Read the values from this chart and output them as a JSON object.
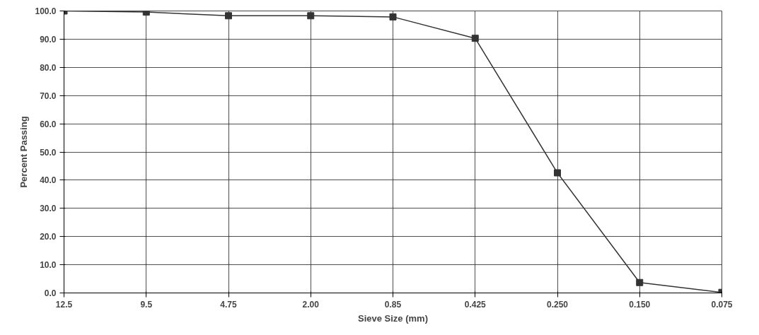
{
  "chart_data": {
    "type": "line",
    "xlabel": "Sieve Size (mm)",
    "ylabel": "Percent Passing",
    "categories": [
      "12.5",
      "9.5",
      "4.75",
      "2.00",
      "0.85",
      "0.425",
      "0.250",
      "0.150",
      "0.075"
    ],
    "series": [
      {
        "color": "#333333",
        "values": [
          100,
          99.6,
          98.3,
          98.3,
          97.9,
          90.3,
          42.6,
          3.7,
          0.2
        ]
      }
    ],
    "ylim": [
      0,
      100
    ],
    "yticks": [
      {
        "value": 0,
        "label": "0.0"
      },
      {
        "value": 10,
        "label": "10.0"
      },
      {
        "value": 20,
        "label": "20.0"
      },
      {
        "value": 30,
        "label": "30.0"
      },
      {
        "value": 40,
        "label": "40.0"
      },
      {
        "value": 50,
        "label": "50.0"
      },
      {
        "value": 60,
        "label": "60.0"
      },
      {
        "value": 70,
        "label": "70.0"
      },
      {
        "value": 80,
        "label": "80.0"
      },
      {
        "value": 90,
        "label": "90.0"
      },
      {
        "value": 100,
        "label": "100.0"
      }
    ],
    "grid": true,
    "marker": "square",
    "line_style": "solid"
  }
}
